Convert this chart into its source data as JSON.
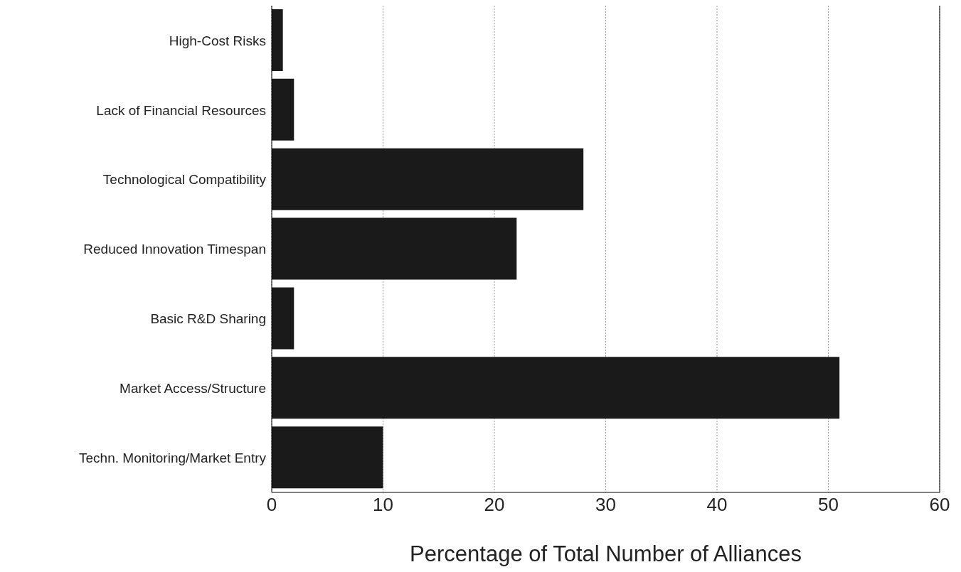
{
  "chart_data": {
    "type": "bar",
    "orientation": "horizontal",
    "xlabel": "Percentage of Total Number of Alliances",
    "categories": [
      "High-Cost Risks",
      "Lack of Financial Resources",
      "Technological Compatibility",
      "Reduced Innovation Timespan",
      "Basic R&D Sharing",
      "Market Access/Structure",
      "Techn. Monitoring/Market Entry"
    ],
    "values": [
      1,
      2,
      28,
      22,
      2,
      51,
      10
    ],
    "color": "#1a1a1a",
    "xlim": [
      0,
      60
    ],
    "xticks": [
      0,
      10,
      20,
      30,
      40,
      50,
      60
    ],
    "grid": "x"
  }
}
